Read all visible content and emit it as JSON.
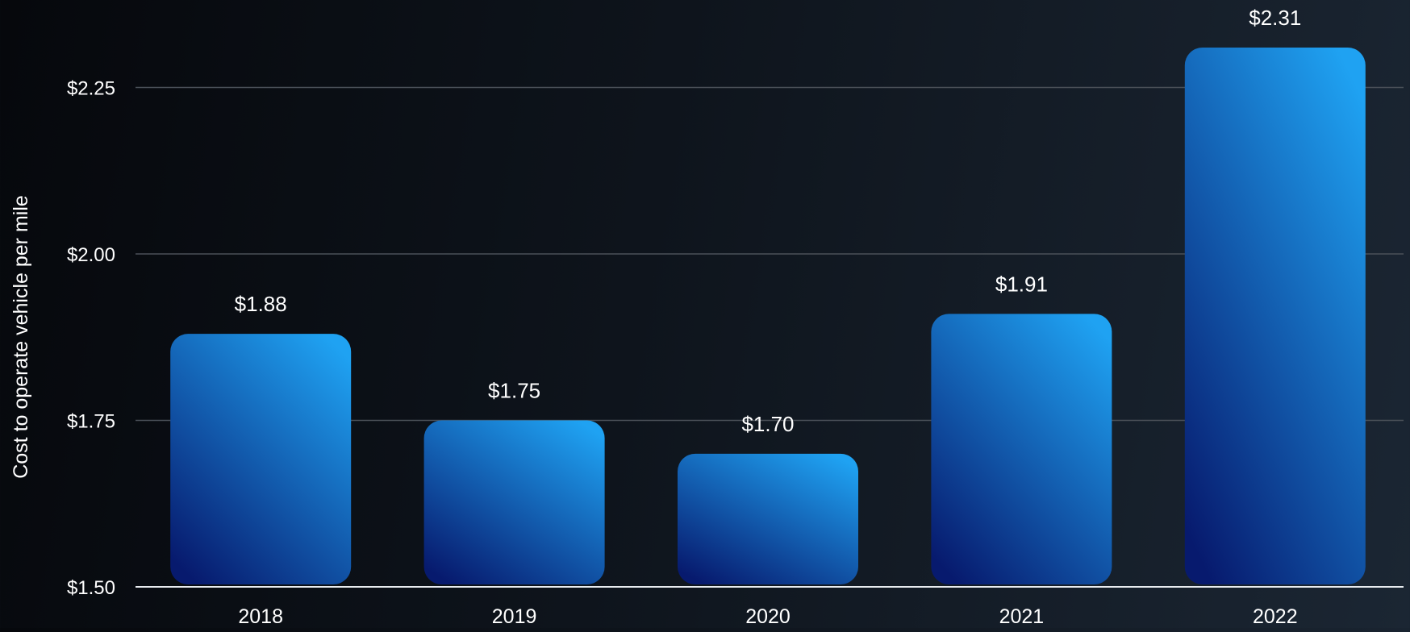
{
  "chart_data": {
    "type": "bar",
    "title": "",
    "xlabel": "",
    "ylabel": "Cost to operate vehicle per mile",
    "categories": [
      "2018",
      "2019",
      "2020",
      "2021",
      "2022"
    ],
    "values": [
      1.88,
      1.75,
      1.7,
      1.91,
      2.31
    ],
    "value_labels": [
      "$1.88",
      "$1.75",
      "$1.70",
      "$1.91",
      "$2.31"
    ],
    "ylim": [
      1.5,
      2.31
    ],
    "yticks": [
      1.5,
      1.75,
      2.0,
      2.25
    ],
    "ytick_labels": [
      "$1.50",
      "$1.75",
      "$2.00",
      "$2.25"
    ],
    "grid": true,
    "legend": "none",
    "colors": {
      "bar_top": "#1fa2f2",
      "bar_bottom": "#071a6e",
      "gridline": "#4a5058",
      "axis": "#e8ecf0",
      "text": "#ffffff"
    }
  }
}
